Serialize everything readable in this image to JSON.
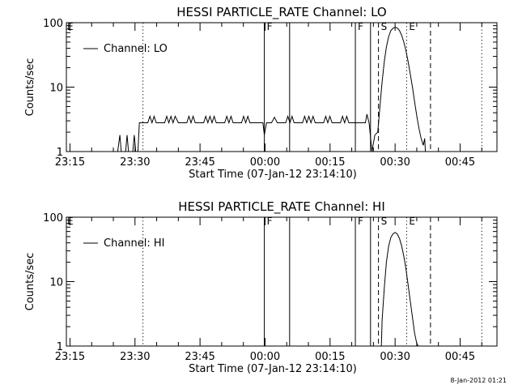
{
  "footer": "8-Jan-2012 01:21",
  "chart_data": [
    {
      "type": "line",
      "title": "HESSI PARTICLE_RATE Channel: LO",
      "xlabel": "Start Time (07-Jan-12 23:14:10)",
      "ylabel": "Counts/sec",
      "yscale": "log",
      "ylim": [
        1,
        100
      ],
      "xlim": [
        "23:14:10",
        "00:53:30"
      ],
      "x_ticks": [
        "23:15",
        "23:30",
        "23:45",
        "00:00",
        "00:15",
        "00:30",
        "00:45"
      ],
      "y_ticks": [
        "1",
        "10",
        "100"
      ],
      "grid": false,
      "legend": {
        "position": "top-left",
        "entries": [
          "Channel: LO"
        ]
      },
      "markers": [
        {
          "label": "E",
          "time": "23:14:10",
          "style": "none"
        },
        {
          "label": "",
          "time": "23:31:50",
          "style": "dotted"
        },
        {
          "label": "F",
          "time": "23:59:50",
          "style": "solid"
        },
        {
          "label": "",
          "time": "00:05:40",
          "style": "solid"
        },
        {
          "label": "F",
          "time": "00:20:50",
          "style": "solid"
        },
        {
          "label": "",
          "time": "00:24:20",
          "style": "solid"
        },
        {
          "label": "S",
          "time": "00:26:10",
          "style": "dashed"
        },
        {
          "label": "",
          "time": "00:32:40",
          "style": "dotted"
        },
        {
          "label": "E",
          "time": "00:32:40",
          "style": "none"
        },
        {
          "label": "",
          "time": "00:38:10",
          "style": "dashed"
        },
        {
          "label": "",
          "time": "00:50:00",
          "style": "dotted"
        }
      ],
      "series": [
        {
          "name": "Channel: LO",
          "pattern": "noisy",
          "points": [
            [
              "23:14:10",
              1
            ],
            [
              "23:26:00",
              1
            ],
            [
              "23:26:30",
              1.8
            ],
            [
              "23:26:50",
              1
            ],
            [
              "23:27:50",
              1
            ],
            [
              "23:28:10",
              1.8
            ],
            [
              "23:28:30",
              1
            ],
            [
              "23:29:30",
              1
            ],
            [
              "23:29:50",
              1.8
            ],
            [
              "23:30:10",
              1
            ],
            [
              "23:30:40",
              1
            ],
            [
              "23:31:00",
              2.8
            ],
            [
              "23:40:00",
              2.8
            ],
            [
              "23:56:30",
              2.8
            ],
            [
              "23:59:30",
              2.8
            ],
            [
              "23:59:50",
              1.8
            ],
            [
              "00:00:20",
              2.8
            ],
            [
              "00:01:30",
              2.8
            ],
            [
              "00:02:10",
              3.4
            ],
            [
              "00:02:50",
              2.8
            ],
            [
              "00:20:00",
              2.8
            ],
            [
              "00:23:10",
              2.8
            ],
            [
              "00:23:30",
              3.8
            ],
            [
              "00:24:00",
              2.8
            ],
            [
              "00:24:40",
              1
            ],
            [
              "00:25:20",
              1.8
            ],
            [
              "00:26:00",
              2
            ],
            [
              "00:26:30",
              5
            ],
            [
              "00:27:00",
              12
            ],
            [
              "00:27:30",
              25
            ],
            [
              "00:28:00",
              42
            ],
            [
              "00:28:30",
              60
            ],
            [
              "00:29:00",
              75
            ],
            [
              "00:29:30",
              82
            ],
            [
              "00:30:00",
              85
            ],
            [
              "00:30:30",
              83
            ],
            [
              "00:31:00",
              76
            ],
            [
              "00:31:30",
              64
            ],
            [
              "00:32:00",
              50
            ],
            [
              "00:32:30",
              37
            ],
            [
              "00:33:00",
              25
            ],
            [
              "00:33:30",
              16
            ],
            [
              "00:34:00",
              10
            ],
            [
              "00:34:30",
              6
            ],
            [
              "00:35:00",
              3.6
            ],
            [
              "00:35:30",
              2.3
            ],
            [
              "00:36:00",
              1.6
            ],
            [
              "00:36:30",
              1.25
            ],
            [
              "00:36:50",
              1.6
            ],
            [
              "00:37:00",
              1
            ]
          ]
        }
      ]
    },
    {
      "type": "line",
      "title": "HESSI PARTICLE_RATE Channel: HI",
      "xlabel": "Start Time (07-Jan-12 23:14:10)",
      "ylabel": "Counts/sec",
      "yscale": "log",
      "ylim": [
        1,
        100
      ],
      "xlim": [
        "23:14:10",
        "00:53:30"
      ],
      "x_ticks": [
        "23:15",
        "23:30",
        "23:45",
        "00:00",
        "00:15",
        "00:30",
        "00:45"
      ],
      "y_ticks": [
        "1",
        "10",
        "100"
      ],
      "grid": false,
      "legend": {
        "position": "top-left",
        "entries": [
          "Channel: HI"
        ]
      },
      "markers": [
        {
          "label": "E",
          "time": "23:14:10",
          "style": "none"
        },
        {
          "label": "",
          "time": "23:31:50",
          "style": "dotted"
        },
        {
          "label": "F",
          "time": "23:59:50",
          "style": "solid"
        },
        {
          "label": "",
          "time": "00:05:40",
          "style": "solid"
        },
        {
          "label": "F",
          "time": "00:20:50",
          "style": "solid"
        },
        {
          "label": "",
          "time": "00:24:20",
          "style": "solid"
        },
        {
          "label": "S",
          "time": "00:26:10",
          "style": "dashed"
        },
        {
          "label": "",
          "time": "00:32:40",
          "style": "dotted"
        },
        {
          "label": "E",
          "time": "00:32:40",
          "style": "none"
        },
        {
          "label": "",
          "time": "00:38:10",
          "style": "dashed"
        },
        {
          "label": "",
          "time": "00:50:00",
          "style": "dotted"
        }
      ],
      "series": [
        {
          "name": "Channel: HI",
          "pattern": "smooth",
          "points": [
            [
              "00:26:50",
              1
            ],
            [
              "00:27:00",
              2.5
            ],
            [
              "00:27:30",
              8
            ],
            [
              "00:28:00",
              20
            ],
            [
              "00:28:30",
              35
            ],
            [
              "00:29:00",
              48
            ],
            [
              "00:29:30",
              55
            ],
            [
              "00:30:00",
              58
            ],
            [
              "00:30:30",
              55
            ],
            [
              "00:31:00",
              47
            ],
            [
              "00:31:30",
              36
            ],
            [
              "00:32:00",
              25
            ],
            [
              "00:32:30",
              16
            ],
            [
              "00:33:00",
              9
            ],
            [
              "00:33:30",
              5
            ],
            [
              "00:34:00",
              2.8
            ],
            [
              "00:34:30",
              1.6
            ],
            [
              "00:35:00",
              1.1
            ],
            [
              "00:35:20",
              1
            ]
          ]
        }
      ]
    }
  ]
}
